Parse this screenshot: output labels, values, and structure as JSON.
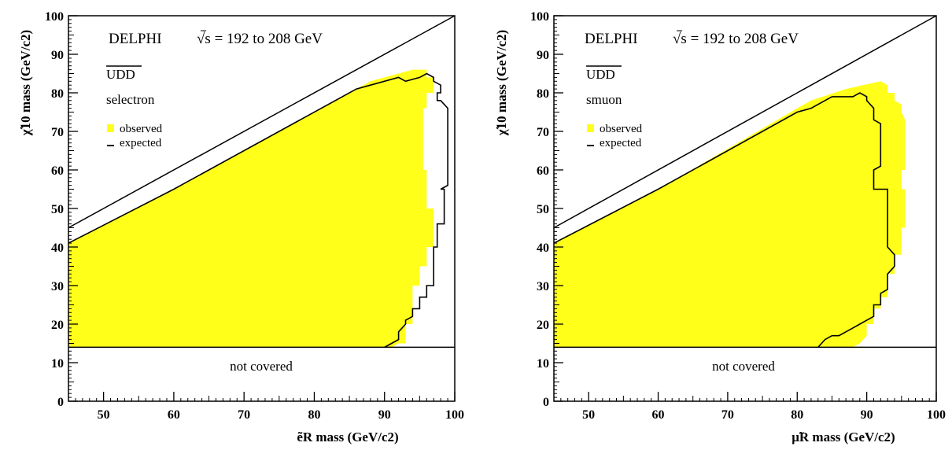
{
  "colors": {
    "observed": "#ffff1a",
    "expected": "#000000",
    "frame": "#000000",
    "background": "#ffffff"
  },
  "chart_data": [
    {
      "type": "area",
      "experiment": "DELPHI",
      "energy_label": "√s = 192 to 208 GeV",
      "coupling": "UDD",
      "particle": "selectron",
      "xlabel": "ẽR mass (GeV/c2)",
      "ylabel": "χ̃10 mass (GeV/c2)",
      "xlim": [
        45,
        100
      ],
      "ylim": [
        0,
        100
      ],
      "xticks": [
        "50",
        "60",
        "70",
        "80",
        "90",
        "100"
      ],
      "yticks": [
        "0",
        "10",
        "20",
        "30",
        "40",
        "50",
        "60",
        "70",
        "80",
        "90",
        "100"
      ],
      "kinematic_limit": [
        [
          45,
          45
        ],
        [
          100,
          100
        ]
      ],
      "coverage_limit_y": 14,
      "not_covered_label": "not covered",
      "legend": [
        "observed",
        "expected"
      ],
      "legend_position": "left",
      "observed_region": [
        [
          45,
          14
        ],
        [
          45,
          41
        ],
        [
          60,
          55
        ],
        [
          61,
          56
        ],
        [
          86,
          81
        ],
        [
          88,
          83
        ],
        [
          92,
          85
        ],
        [
          94,
          86
        ],
        [
          96,
          86
        ],
        [
          96,
          84
        ],
        [
          97,
          84
        ],
        [
          97,
          80
        ],
        [
          96,
          80
        ],
        [
          96,
          76
        ],
        [
          95.5,
          76
        ],
        [
          95.5,
          70
        ],
        [
          95.5,
          60
        ],
        [
          96,
          60
        ],
        [
          96,
          50
        ],
        [
          97,
          50
        ],
        [
          97,
          45
        ],
        [
          97,
          40
        ],
        [
          96,
          40
        ],
        [
          96,
          35
        ],
        [
          95,
          35
        ],
        [
          95,
          30
        ],
        [
          94,
          30
        ],
        [
          94,
          25
        ],
        [
          94,
          20
        ],
        [
          93,
          20
        ],
        [
          93,
          15
        ],
        [
          92,
          15
        ],
        [
          91,
          14
        ]
      ],
      "expected_limit": [
        [
          45,
          41
        ],
        [
          60,
          55
        ],
        [
          61,
          56
        ],
        [
          86,
          81
        ],
        [
          88,
          82
        ],
        [
          92,
          84
        ],
        [
          93,
          83
        ],
        [
          95,
          84
        ],
        [
          96,
          85
        ],
        [
          97,
          84
        ],
        [
          97,
          83
        ],
        [
          98,
          82
        ],
        [
          98,
          80
        ],
        [
          97.5,
          80
        ],
        [
          97.5,
          78
        ],
        [
          98,
          78
        ],
        [
          99,
          76
        ],
        [
          99,
          60
        ],
        [
          99,
          56
        ],
        [
          98,
          55
        ],
        [
          98.5,
          55
        ],
        [
          98.5,
          48
        ],
        [
          98.5,
          46
        ],
        [
          97.5,
          46
        ],
        [
          97.5,
          40
        ],
        [
          97,
          40
        ],
        [
          97,
          30
        ],
        [
          96,
          30
        ],
        [
          96,
          27
        ],
        [
          95,
          27
        ],
        [
          95,
          24
        ],
        [
          94,
          24
        ],
        [
          94,
          22
        ],
        [
          93,
          21
        ],
        [
          93,
          20
        ],
        [
          92,
          18
        ],
        [
          92,
          16
        ],
        [
          91,
          15
        ],
        [
          90,
          14
        ]
      ]
    },
    {
      "type": "area",
      "experiment": "DELPHI",
      "energy_label": "√s = 192 to 208 GeV",
      "coupling": "UDD",
      "particle": "smuon",
      "xlabel": "μ̃R mass (GeV/c2)",
      "ylabel": "χ̃10 mass (GeV/c2)",
      "xlim": [
        45,
        100
      ],
      "ylim": [
        0,
        100
      ],
      "xticks": [
        "50",
        "60",
        "70",
        "80",
        "90",
        "100"
      ],
      "yticks": [
        "0",
        "10",
        "20",
        "30",
        "40",
        "50",
        "60",
        "70",
        "80",
        "90",
        "100"
      ],
      "kinematic_limit": [
        [
          45,
          45
        ],
        [
          100,
          100
        ]
      ],
      "coverage_limit_y": 14,
      "not_covered_label": "not covered",
      "legend": [
        "observed",
        "expected"
      ],
      "legend_position": "left",
      "observed_region": [
        [
          45,
          14
        ],
        [
          45,
          41
        ],
        [
          60,
          55
        ],
        [
          61,
          56
        ],
        [
          80,
          76
        ],
        [
          82,
          78
        ],
        [
          87,
          81
        ],
        [
          92,
          83
        ],
        [
          93,
          82
        ],
        [
          93,
          80
        ],
        [
          94,
          80
        ],
        [
          94,
          78
        ],
        [
          95,
          77
        ],
        [
          95,
          75
        ],
        [
          95.5,
          73
        ],
        [
          95.5,
          68
        ],
        [
          95.5,
          60
        ],
        [
          95,
          60
        ],
        [
          95,
          55
        ],
        [
          95.5,
          55
        ],
        [
          95.5,
          45
        ],
        [
          95,
          45
        ],
        [
          95,
          38
        ],
        [
          94,
          38
        ],
        [
          94,
          33
        ],
        [
          93,
          33
        ],
        [
          93,
          27
        ],
        [
          92,
          27
        ],
        [
          92,
          24
        ],
        [
          91,
          24
        ],
        [
          91,
          20
        ],
        [
          90,
          20
        ],
        [
          90,
          17
        ],
        [
          89,
          15
        ],
        [
          88,
          14
        ]
      ],
      "expected_limit": [
        [
          45,
          41
        ],
        [
          60,
          55
        ],
        [
          61,
          56
        ],
        [
          80,
          75
        ],
        [
          82,
          76
        ],
        [
          84,
          78
        ],
        [
          85,
          79
        ],
        [
          88,
          79
        ],
        [
          89,
          80
        ],
        [
          90,
          79
        ],
        [
          90,
          78
        ],
        [
          91,
          76
        ],
        [
          91,
          73
        ],
        [
          92,
          72
        ],
        [
          92,
          67
        ],
        [
          92,
          61
        ],
        [
          91,
          60
        ],
        [
          91,
          55
        ],
        [
          93,
          55
        ],
        [
          93,
          50
        ],
        [
          93,
          45
        ],
        [
          93,
          40
        ],
        [
          94,
          38
        ],
        [
          94,
          35
        ],
        [
          93,
          33
        ],
        [
          93,
          29
        ],
        [
          92,
          28
        ],
        [
          92,
          25
        ],
        [
          91,
          25
        ],
        [
          91,
          22
        ],
        [
          90,
          21
        ],
        [
          89,
          20
        ],
        [
          88,
          19
        ],
        [
          87,
          18
        ],
        [
          86,
          17
        ],
        [
          85,
          17
        ],
        [
          84,
          16
        ],
        [
          83,
          14
        ]
      ]
    }
  ]
}
